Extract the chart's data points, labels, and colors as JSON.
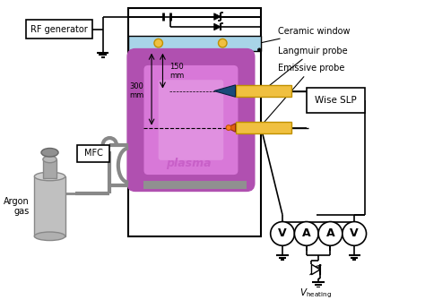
{
  "bg_color": "#ffffff",
  "plasma_color_outer": "#b050b0",
  "plasma_color_inner": "#d070d0",
  "window_color": "#a8d4e8",
  "probe_color": "#f0c040",
  "langmuir_tip_color": "#1a4a7a",
  "emissive_tip_color": "#e06010",
  "tank_color": "#b8b8b8",
  "gray_bar_color": "#909090",
  "meter_labels": [
    "V",
    "A",
    "A",
    "V"
  ],
  "annotations": [
    "Ceramic window",
    "Langmuir probe",
    "Emissive probe"
  ]
}
